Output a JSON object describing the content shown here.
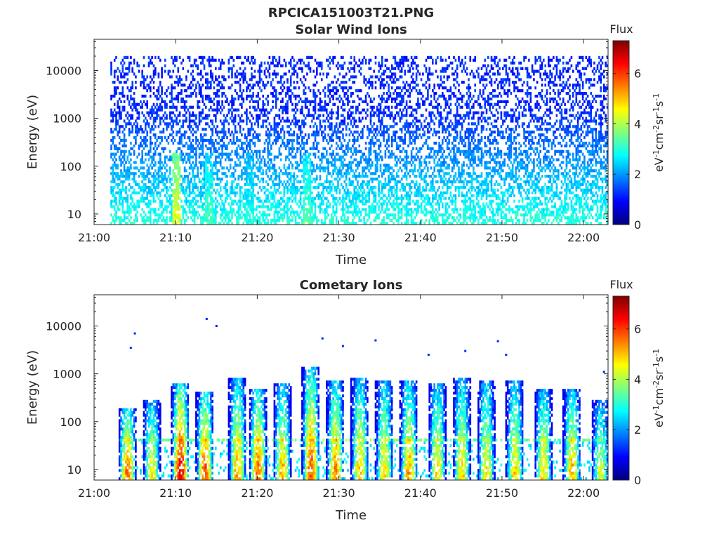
{
  "figure_title": "RPCICA151003T21.PNG",
  "colormap_stops": [
    "#00007f",
    "#0000ff",
    "#007fff",
    "#00ffff",
    "#7fff7f",
    "#ffff00",
    "#ff7f00",
    "#ff0000",
    "#7f0000"
  ],
  "chart_data": [
    {
      "type": "heatmap",
      "title": "Solar Wind Ions",
      "xlabel": "Time",
      "ylabel": "Energy (eV)",
      "y_scale": "log",
      "xlim": [
        "21:00",
        "22:03"
      ],
      "ylim": [
        6,
        45000
      ],
      "x_ticks": [
        "21:00",
        "21:10",
        "21:20",
        "21:30",
        "21:40",
        "21:50",
        "22:00"
      ],
      "y_ticks": [
        10,
        100,
        1000,
        10000
      ],
      "y_tick_labels": [
        "10",
        "100",
        "1000",
        "10000"
      ],
      "colorbar": {
        "title": "Flux",
        "label": "eV-1cm-2sr-1s-1",
        "range": [
          0,
          7.3
        ],
        "ticks": [
          0,
          2,
          4,
          6
        ],
        "tick_labels": [
          "0",
          "2",
          "4",
          "6"
        ]
      },
      "data_range": [
        "21:02",
        "22:03"
      ],
      "pattern": {
        "high_energy_max_eV": 20000,
        "low_energy_flux": 3.0,
        "high_energy_flux": 1.2,
        "bursts": [
          {
            "time": "21:10",
            "flux": 4.4
          },
          {
            "time": "21:14",
            "flux": 3.3
          },
          {
            "time": "21:19",
            "flux": 3.0
          },
          {
            "time": "21:26",
            "flux": 3.4
          }
        ]
      }
    },
    {
      "type": "heatmap",
      "title": "Cometary Ions",
      "xlabel": "Time",
      "ylabel": "Energy (eV)",
      "y_scale": "log",
      "xlim": [
        "21:00",
        "22:03"
      ],
      "ylim": [
        6,
        45000
      ],
      "x_ticks": [
        "21:00",
        "21:10",
        "21:20",
        "21:30",
        "21:40",
        "21:50",
        "22:00"
      ],
      "y_ticks": [
        10,
        100,
        1000,
        10000
      ],
      "y_tick_labels": [
        "10",
        "100",
        "1000",
        "10000"
      ],
      "colorbar": {
        "title": "Flux",
        "label": "eV-1cm-2sr-1s-1",
        "range": [
          0,
          7.3
        ],
        "ticks": [
          0,
          2,
          4,
          6
        ],
        "tick_labels": [
          "0",
          "2",
          "4",
          "6"
        ]
      },
      "data_range": [
        "21:03",
        "22:03"
      ],
      "pattern": {
        "band_energy_eV": 42,
        "bursts": [
          {
            "time": "21:04",
            "peak_flux": 5.6,
            "top_eV": 200
          },
          {
            "time": "21:07",
            "peak_flux": 4.6,
            "top_eV": 300
          },
          {
            "time": "21:10.5",
            "peak_flux": 6.6,
            "top_eV": 600
          },
          {
            "time": "21:13.5",
            "peak_flux": 5.8,
            "top_eV": 450
          },
          {
            "time": "21:17.5",
            "peak_flux": 5.2,
            "top_eV": 800
          },
          {
            "time": "21:20",
            "peak_flux": 5.6,
            "top_eV": 500
          },
          {
            "time": "21:23",
            "peak_flux": 5.0,
            "top_eV": 600
          },
          {
            "time": "21:26.5",
            "peak_flux": 5.8,
            "top_eV": 1400
          },
          {
            "time": "21:29.5",
            "peak_flux": 5.4,
            "top_eV": 700
          },
          {
            "time": "21:32.5",
            "peak_flux": 5.0,
            "top_eV": 800
          },
          {
            "time": "21:35.5",
            "peak_flux": 4.8,
            "top_eV": 700
          },
          {
            "time": "21:38.5",
            "peak_flux": 5.2,
            "top_eV": 700
          },
          {
            "time": "21:42",
            "peak_flux": 4.8,
            "top_eV": 600
          },
          {
            "time": "21:45",
            "peak_flux": 4.8,
            "top_eV": 800
          },
          {
            "time": "21:48",
            "peak_flux": 4.6,
            "top_eV": 700
          },
          {
            "time": "21:51.5",
            "peak_flux": 4.8,
            "top_eV": 700
          },
          {
            "time": "21:55",
            "peak_flux": 4.8,
            "top_eV": 500
          },
          {
            "time": "21:58.5",
            "peak_flux": 5.0,
            "top_eV": 500
          },
          {
            "time": "22:02",
            "peak_flux": 4.2,
            "top_eV": 300
          }
        ],
        "scattered_high_energy_points": [
          {
            "time": "21:04.5",
            "energy": 3500
          },
          {
            "time": "21:05",
            "energy": 7000
          },
          {
            "time": "21:13.8",
            "energy": 14000
          },
          {
            "time": "21:15",
            "energy": 10000
          },
          {
            "time": "21:28",
            "energy": 5500
          },
          {
            "time": "21:30.5",
            "energy": 3800
          },
          {
            "time": "21:34.5",
            "energy": 5000
          },
          {
            "time": "21:41",
            "energy": 2500
          },
          {
            "time": "21:45.5",
            "energy": 3000
          },
          {
            "time": "21:49.5",
            "energy": 4800
          },
          {
            "time": "21:50.5",
            "energy": 2500
          },
          {
            "time": "22:02.5",
            "energy": 1100
          }
        ]
      }
    }
  ]
}
